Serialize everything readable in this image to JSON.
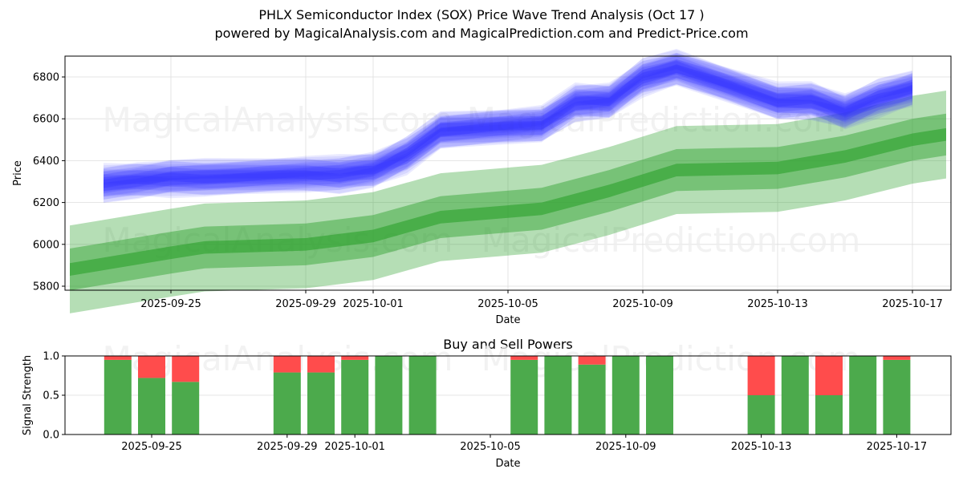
{
  "chart_data": [
    {
      "type": "area",
      "title": "PHLX Semiconductor Index (SOX) Price Wave Trend Analysis (Oct 17 )",
      "subtitle": "powered by MagicalAnalysis.com and MagicalPrediction.com and Predict-Price.com",
      "xlabel": "Date",
      "ylabel": "Price",
      "ylim": [
        5780,
        6905
      ],
      "yticks": [
        5800,
        6000,
        6200,
        6400,
        6600,
        6800
      ],
      "xticks": [
        "2025-09-25",
        "2025-09-29",
        "2025-10-01",
        "2025-10-05",
        "2025-10-09",
        "2025-10-13",
        "2025-10-17"
      ],
      "grid": true,
      "series": [
        {
          "name": "price-wave",
          "color": "#0000ff",
          "x": [
            "2025-09-23",
            "2025-09-24",
            "2025-09-25",
            "2025-09-26",
            "2025-09-29",
            "2025-09-30",
            "2025-10-01",
            "2025-10-02",
            "2025-10-03",
            "2025-10-06",
            "2025-10-07",
            "2025-10-08",
            "2025-10-09",
            "2025-10-10",
            "2025-10-13",
            "2025-10-14",
            "2025-10-15",
            "2025-10-16",
            "2025-10-17"
          ],
          "center": [
            6290,
            6310,
            6320,
            6315,
            6330,
            6335,
            6360,
            6430,
            6540,
            6570,
            6680,
            6690,
            6800,
            6840,
            6680,
            6690,
            6640,
            6700,
            6740
          ],
          "band_halfwidths": [
            20,
            45,
            75
          ]
        },
        {
          "name": "trend-forecast",
          "color": "#2ca02c",
          "x": [
            "2025-09-22",
            "2025-09-25",
            "2025-09-26",
            "2025-09-29",
            "2025-10-01",
            "2025-10-03",
            "2025-10-06",
            "2025-10-08",
            "2025-10-10",
            "2025-10-13",
            "2025-10-15",
            "2025-10-17",
            "2025-10-18"
          ],
          "center": [
            5880,
            5960,
            5985,
            6000,
            6040,
            6130,
            6170,
            6255,
            6355,
            6365,
            6420,
            6500,
            6525
          ],
          "band_halfwidths": [
            30,
            100,
            210
          ]
        }
      ]
    },
    {
      "type": "bar",
      "title": "Buy and Sell Powers",
      "xlabel": "Date",
      "ylabel": "Signal Strength",
      "ylim": [
        0,
        1.0
      ],
      "yticks": [
        "0.0",
        "0.5",
        "1.0"
      ],
      "xticks": [
        "2025-09-25",
        "2025-09-29",
        "2025-10-01",
        "2025-10-05",
        "2025-10-09",
        "2025-10-13",
        "2025-10-17"
      ],
      "categories": [
        "2025-09-24",
        "2025-09-25",
        "2025-09-26",
        "2025-09-29",
        "2025-09-30",
        "2025-10-01",
        "2025-10-02",
        "2025-10-03",
        "2025-10-06",
        "2025-10-07",
        "2025-10-08",
        "2025-10-09",
        "2025-10-10",
        "2025-10-13",
        "2025-10-14",
        "2025-10-15",
        "2025-10-16",
        "2025-10-17"
      ],
      "series": [
        {
          "name": "Buy",
          "color": "#4caa4c",
          "values": [
            0.95,
            0.72,
            0.67,
            0.79,
            0.79,
            0.95,
            1.0,
            1.0,
            0.95,
            1.0,
            0.89,
            1.0,
            1.0,
            0.5,
            1.0,
            0.5,
            1.0,
            0.95
          ]
        },
        {
          "name": "Sell",
          "color": "#ff4c4c",
          "values": [
            0.05,
            0.28,
            0.33,
            0.21,
            0.21,
            0.05,
            0.0,
            0.0,
            0.05,
            0.0,
            0.11,
            0.0,
            0.0,
            0.5,
            0.0,
            0.5,
            0.0,
            0.05
          ]
        }
      ]
    }
  ],
  "watermarks": [
    "MagicalAnalysis.com",
    "MagicalPrediction.com"
  ]
}
